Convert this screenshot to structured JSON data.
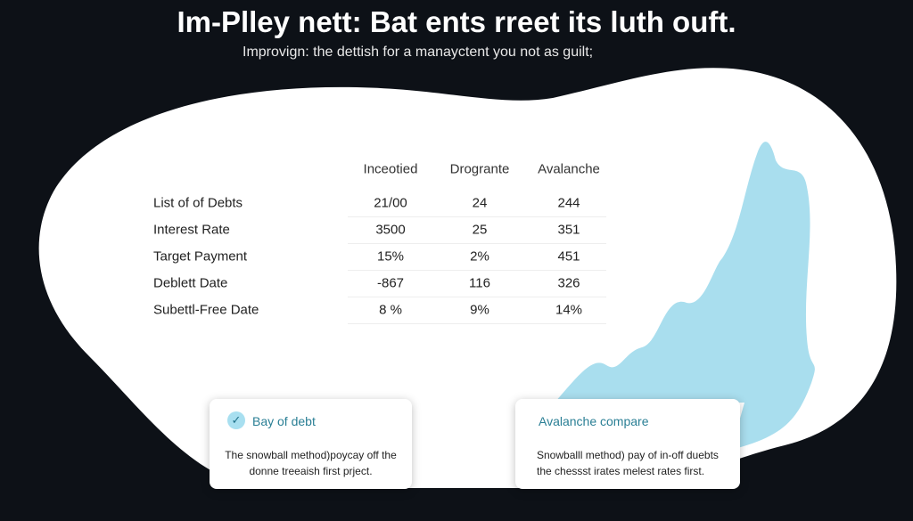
{
  "header": {
    "title": "Im-Plley nett: Bat ents rreet its luth ouft.",
    "subtitle": "Improvign: the dettish for a manayctent you not as guilt;"
  },
  "table": {
    "columns": [
      "Inceotied",
      "Drogrante",
      "Avalanche"
    ],
    "rows": [
      {
        "label": "List of of Debts",
        "cells": [
          "21/00",
          "24",
          "244"
        ]
      },
      {
        "label": "Interest Rate",
        "cells": [
          "3500",
          "25",
          "351"
        ]
      },
      {
        "label": "Target Payment",
        "cells": [
          "15%",
          "2%",
          "451"
        ]
      },
      {
        "label": "Deblett Date",
        "cells": [
          "-867",
          "116",
          "326"
        ]
      },
      {
        "label": "Subettl-Free Date",
        "cells": [
          "8 %",
          "9%",
          "14%"
        ]
      }
    ]
  },
  "cards": [
    {
      "title": "Bay of debt",
      "lines": [
        "The snowball method)poycay off the",
        "donne treeaish first prject."
      ]
    },
    {
      "title": "Avalanche compare",
      "lines": [
        "Snowballl method) pay of in-off duebts",
        "the chessst irates melest rates first."
      ]
    }
  ]
}
